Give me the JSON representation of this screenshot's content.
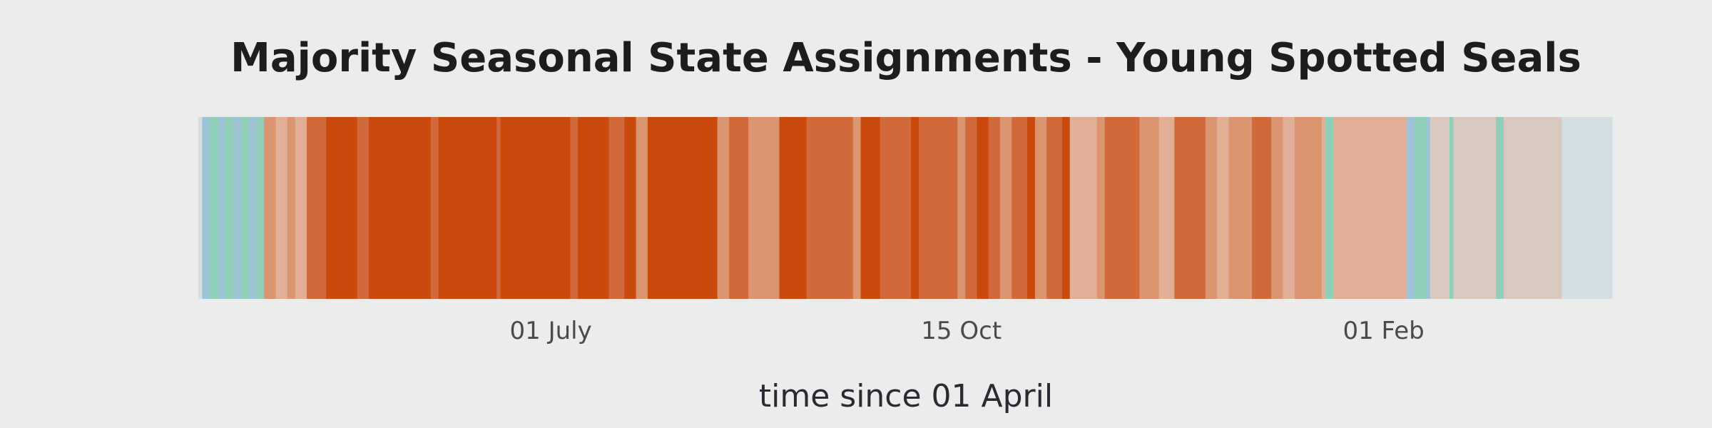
{
  "chart_data": {
    "type": "heatmap",
    "title": "Majority Seasonal State Assignments - Young Spotted Seals",
    "xlabel": "time since 01 April",
    "ylabel": "",
    "x_unit": "day of year starting 01 April",
    "xlim": [
      0,
      365
    ],
    "grid": false,
    "legend": "none",
    "x_ticks": [
      {
        "label": "01 July",
        "value": 91
      },
      {
        "label": "15 Oct",
        "value": 197
      },
      {
        "label": "01 Feb",
        "value": 306
      }
    ],
    "state_colors": {
      "A": "#9ec3d6",
      "B": "#8fcfb8",
      "C": "#d9c8c0",
      "D": "#e0af96",
      "E": "#db9570",
      "F": "#d2693a",
      "G": "#c94a0c",
      "H": "#d3dfe2"
    },
    "segments": [
      {
        "start": 0,
        "end": 1,
        "state": "H"
      },
      {
        "start": 1,
        "end": 3,
        "state": "A"
      },
      {
        "start": 3,
        "end": 5,
        "state": "B"
      },
      {
        "start": 5,
        "end": 7,
        "state": "A"
      },
      {
        "start": 7,
        "end": 9,
        "state": "B"
      },
      {
        "start": 9,
        "end": 11,
        "state": "A"
      },
      {
        "start": 11,
        "end": 13,
        "state": "B"
      },
      {
        "start": 13,
        "end": 15,
        "state": "A"
      },
      {
        "start": 15,
        "end": 17,
        "state": "B"
      },
      {
        "start": 17,
        "end": 20,
        "state": "E"
      },
      {
        "start": 20,
        "end": 23,
        "state": "D"
      },
      {
        "start": 23,
        "end": 25,
        "state": "E"
      },
      {
        "start": 25,
        "end": 28,
        "state": "D"
      },
      {
        "start": 28,
        "end": 33,
        "state": "F"
      },
      {
        "start": 33,
        "end": 41,
        "state": "G"
      },
      {
        "start": 41,
        "end": 44,
        "state": "F"
      },
      {
        "start": 44,
        "end": 60,
        "state": "G"
      },
      {
        "start": 60,
        "end": 62,
        "state": "F"
      },
      {
        "start": 62,
        "end": 77,
        "state": "G"
      },
      {
        "start": 77,
        "end": 78,
        "state": "F"
      },
      {
        "start": 78,
        "end": 96,
        "state": "G"
      },
      {
        "start": 96,
        "end": 98,
        "state": "F"
      },
      {
        "start": 98,
        "end": 106,
        "state": "G"
      },
      {
        "start": 106,
        "end": 110,
        "state": "F"
      },
      {
        "start": 110,
        "end": 113,
        "state": "G"
      },
      {
        "start": 113,
        "end": 116,
        "state": "E"
      },
      {
        "start": 116,
        "end": 134,
        "state": "G"
      },
      {
        "start": 134,
        "end": 137,
        "state": "E"
      },
      {
        "start": 137,
        "end": 142,
        "state": "F"
      },
      {
        "start": 142,
        "end": 150,
        "state": "E"
      },
      {
        "start": 150,
        "end": 157,
        "state": "G"
      },
      {
        "start": 157,
        "end": 161,
        "state": "F"
      },
      {
        "start": 161,
        "end": 169,
        "state": "F"
      },
      {
        "start": 169,
        "end": 171,
        "state": "E"
      },
      {
        "start": 171,
        "end": 176,
        "state": "G"
      },
      {
        "start": 176,
        "end": 184,
        "state": "F"
      },
      {
        "start": 184,
        "end": 186,
        "state": "G"
      },
      {
        "start": 186,
        "end": 196,
        "state": "F"
      },
      {
        "start": 196,
        "end": 198,
        "state": "E"
      },
      {
        "start": 198,
        "end": 201,
        "state": "F"
      },
      {
        "start": 201,
        "end": 204,
        "state": "G"
      },
      {
        "start": 204,
        "end": 207,
        "state": "F"
      },
      {
        "start": 207,
        "end": 210,
        "state": "E"
      },
      {
        "start": 210,
        "end": 214,
        "state": "F"
      },
      {
        "start": 214,
        "end": 216,
        "state": "G"
      },
      {
        "start": 216,
        "end": 219,
        "state": "E"
      },
      {
        "start": 219,
        "end": 223,
        "state": "F"
      },
      {
        "start": 223,
        "end": 225,
        "state": "G"
      },
      {
        "start": 225,
        "end": 232,
        "state": "D"
      },
      {
        "start": 232,
        "end": 234,
        "state": "E"
      },
      {
        "start": 234,
        "end": 243,
        "state": "F"
      },
      {
        "start": 243,
        "end": 248,
        "state": "E"
      },
      {
        "start": 248,
        "end": 252,
        "state": "D"
      },
      {
        "start": 252,
        "end": 260,
        "state": "F"
      },
      {
        "start": 260,
        "end": 263,
        "state": "E"
      },
      {
        "start": 263,
        "end": 266,
        "state": "D"
      },
      {
        "start": 266,
        "end": 272,
        "state": "E"
      },
      {
        "start": 272,
        "end": 277,
        "state": "F"
      },
      {
        "start": 277,
        "end": 280,
        "state": "E"
      },
      {
        "start": 280,
        "end": 283,
        "state": "D"
      },
      {
        "start": 283,
        "end": 290,
        "state": "E"
      },
      {
        "start": 290,
        "end": 291,
        "state": "D"
      },
      {
        "start": 291,
        "end": 293,
        "state": "B"
      },
      {
        "start": 293,
        "end": 312,
        "state": "D"
      },
      {
        "start": 312,
        "end": 314,
        "state": "A"
      },
      {
        "start": 314,
        "end": 317,
        "state": "B"
      },
      {
        "start": 317,
        "end": 318,
        "state": "A"
      },
      {
        "start": 318,
        "end": 323,
        "state": "C"
      },
      {
        "start": 323,
        "end": 324,
        "state": "B"
      },
      {
        "start": 324,
        "end": 335,
        "state": "C"
      },
      {
        "start": 335,
        "end": 337,
        "state": "B"
      },
      {
        "start": 337,
        "end": 352,
        "state": "C"
      },
      {
        "start": 352,
        "end": 365,
        "state": "H"
      }
    ]
  }
}
